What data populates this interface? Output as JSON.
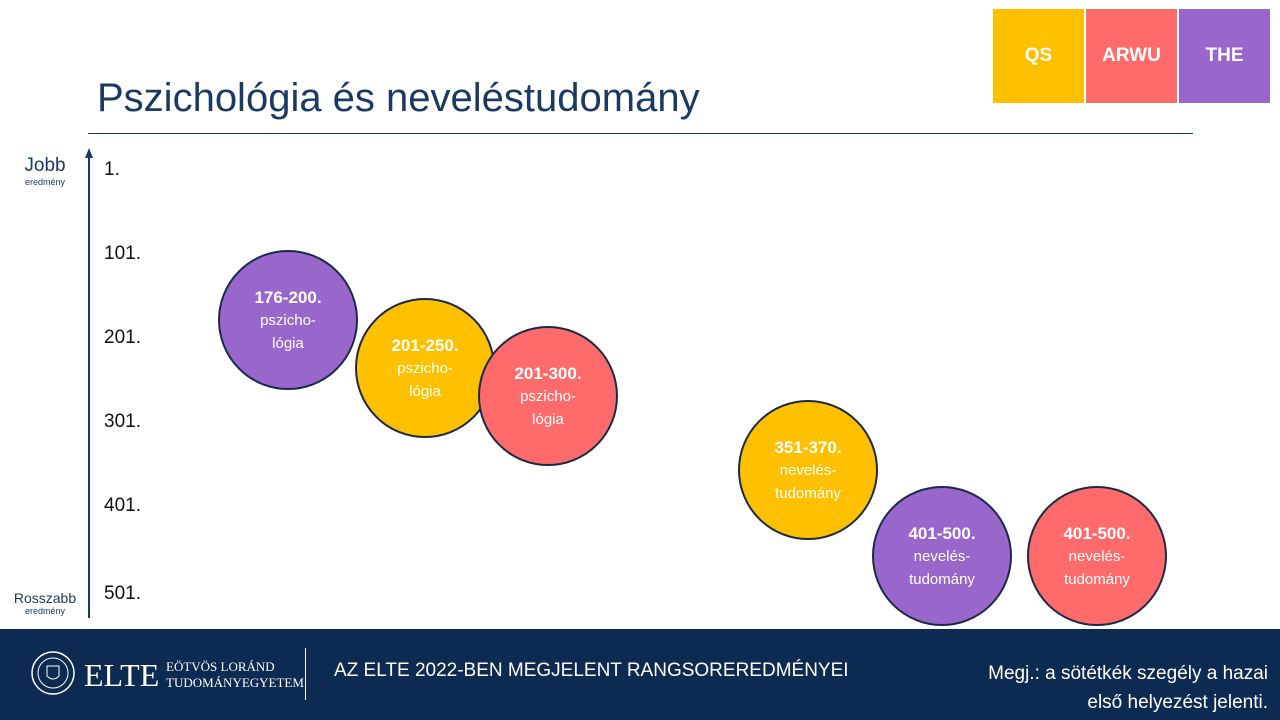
{
  "legend": [
    {
      "label": "QS",
      "color": "#ffc000"
    },
    {
      "label": "ARWU",
      "color": "#ff6b6b"
    },
    {
      "label": "THE",
      "color": "#9966cc"
    }
  ],
  "title": "Pszichológia és neveléstudomány",
  "axis": {
    "top_label": "Jobb",
    "top_sub": "eredmény",
    "bottom_label": "Rosszabb",
    "bottom_sub": "eredmény",
    "ticks": [
      "1.",
      "101.",
      "201.",
      "301.",
      "401.",
      "501."
    ]
  },
  "bubbles": [
    {
      "rank": "176-200.",
      "field": [
        "pszicho-",
        "lógia"
      ],
      "color": "#9966cc"
    },
    {
      "rank": "201-250.",
      "field": [
        "pszicho-",
        "lógia"
      ],
      "color": "#ffc000"
    },
    {
      "rank": "201-300.",
      "field": [
        "pszicho-",
        "lógia"
      ],
      "color": "#ff6b6b"
    },
    {
      "rank": "351-370.",
      "field": [
        "nevelés-",
        "tudomány"
      ],
      "color": "#ffc000"
    },
    {
      "rank": "401-500.",
      "field": [
        "nevelés-",
        "tudomány"
      ],
      "color": "#9966cc"
    },
    {
      "rank": "401-500.",
      "field": [
        "nevelés-",
        "tudomány"
      ],
      "color": "#ff6b6b"
    }
  ],
  "footer": {
    "logo": "ELTE",
    "logo_line1": "EÖTVÖS LORÁND",
    "logo_line2": "TUDOMÁNYEGYETEM",
    "heading": "AZ ELTE 2022-BEN MEGJELENT RANGSOREREDMÉNYEI",
    "note": [
      "Megj.: a sötétkék szegély a hazai",
      "első helyezést jelenti."
    ]
  }
}
